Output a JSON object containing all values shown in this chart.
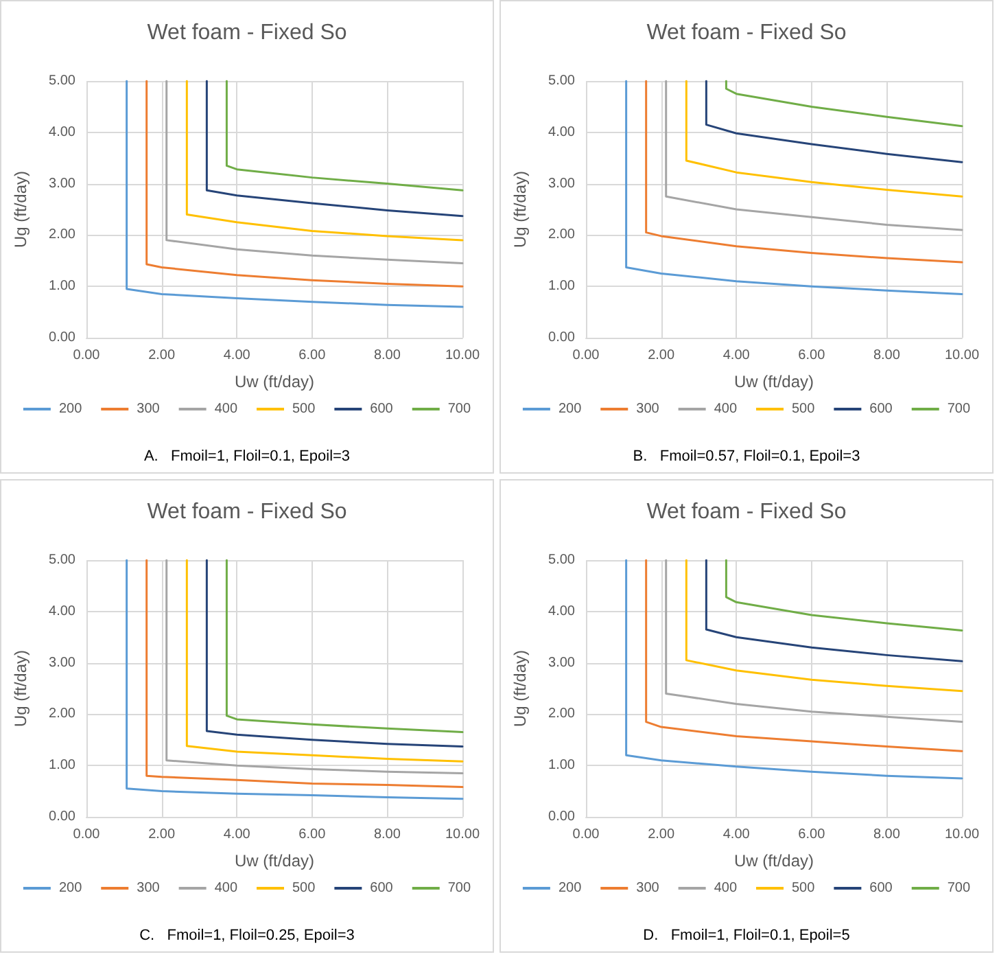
{
  "chart_data": [
    {
      "type": "line",
      "title": "Wet foam - Fixed So",
      "xlabel": "Uw (ft/day)",
      "ylabel": "Ug (ft/day)",
      "annotations": [
        "A.   Fmoil=1, Floil=0.1, Epoil=3"
      ],
      "xlim": [
        0,
        10
      ],
      "ylim": [
        0,
        5
      ],
      "xticks": [
        {
          "value": 0,
          "label": "0.00"
        },
        {
          "value": 2,
          "label": "2.00"
        },
        {
          "value": 4,
          "label": "4.00"
        },
        {
          "value": 6,
          "label": "6.00"
        },
        {
          "value": 8,
          "label": "8.00"
        },
        {
          "value": 10,
          "label": "10.00"
        }
      ],
      "yticks": [
        {
          "value": 0,
          "label": "0.00"
        },
        {
          "value": 1,
          "label": "1.00"
        },
        {
          "value": 2,
          "label": "2.00"
        },
        {
          "value": 3,
          "label": "3.00"
        },
        {
          "value": 4,
          "label": "4.00"
        },
        {
          "value": 5,
          "label": "5.00"
        }
      ],
      "grid": true,
      "legend": "bottom",
      "marker": "none",
      "line_style": "solid",
      "series": [
        {
          "name": "200",
          "color": "#5b9bd5",
          "x": [
            1.07,
            1.07,
            2,
            4,
            6,
            8,
            10
          ],
          "values": [
            5,
            0.95,
            0.85,
            0.77,
            0.7,
            0.64,
            0.6
          ]
        },
        {
          "name": "300",
          "color": "#ed7d31",
          "x": [
            1.6,
            1.6,
            2,
            4,
            6,
            8,
            10
          ],
          "values": [
            5,
            1.43,
            1.37,
            1.22,
            1.12,
            1.05,
            1.0
          ]
        },
        {
          "name": "400",
          "color": "#a5a5a5",
          "x": [
            2.13,
            2.13,
            4,
            6,
            8,
            10
          ],
          "values": [
            5,
            1.9,
            1.72,
            1.6,
            1.52,
            1.45
          ]
        },
        {
          "name": "500",
          "color": "#ffc000",
          "x": [
            2.67,
            2.67,
            4,
            6,
            8,
            10
          ],
          "values": [
            5,
            2.4,
            2.25,
            2.08,
            1.98,
            1.9
          ]
        },
        {
          "name": "600",
          "color": "#264478",
          "x": [
            3.2,
            3.2,
            4,
            6,
            8,
            10
          ],
          "values": [
            5,
            2.87,
            2.77,
            2.62,
            2.48,
            2.37
          ]
        },
        {
          "name": "700",
          "color": "#70ad47",
          "x": [
            3.73,
            3.73,
            4,
            6,
            8,
            10
          ],
          "values": [
            5,
            3.35,
            3.28,
            3.12,
            3.0,
            2.87
          ]
        }
      ]
    },
    {
      "type": "line",
      "title": "Wet foam - Fixed So",
      "xlabel": "Uw (ft/day)",
      "ylabel": "Ug (ft/day)",
      "annotations": [
        "B.   Fmoil=0.57, Floil=0.1, Epoil=3"
      ],
      "xlim": [
        0,
        10
      ],
      "ylim": [
        0,
        5
      ],
      "xticks": [
        {
          "value": 0,
          "label": "0.00"
        },
        {
          "value": 2,
          "label": "2.00"
        },
        {
          "value": 4,
          "label": "4.00"
        },
        {
          "value": 6,
          "label": "6.00"
        },
        {
          "value": 8,
          "label": "8.00"
        },
        {
          "value": 10,
          "label": "10.00"
        }
      ],
      "yticks": [
        {
          "value": 0,
          "label": "0.00"
        },
        {
          "value": 1,
          "label": "1.00"
        },
        {
          "value": 2,
          "label": "2.00"
        },
        {
          "value": 3,
          "label": "3.00"
        },
        {
          "value": 4,
          "label": "4.00"
        },
        {
          "value": 5,
          "label": "5.00"
        }
      ],
      "grid": true,
      "legend": "bottom",
      "marker": "none",
      "line_style": "solid",
      "series": [
        {
          "name": "200",
          "color": "#5b9bd5",
          "x": [
            1.07,
            1.07,
            2,
            4,
            6,
            8,
            10
          ],
          "values": [
            5,
            1.37,
            1.25,
            1.1,
            1.0,
            0.92,
            0.85
          ]
        },
        {
          "name": "300",
          "color": "#ed7d31",
          "x": [
            1.6,
            1.6,
            2,
            4,
            6,
            8,
            10
          ],
          "values": [
            5,
            2.05,
            1.98,
            1.78,
            1.65,
            1.55,
            1.47
          ]
        },
        {
          "name": "400",
          "color": "#a5a5a5",
          "x": [
            2.13,
            2.13,
            4,
            6,
            8,
            10
          ],
          "values": [
            5,
            2.75,
            2.5,
            2.35,
            2.2,
            2.1
          ]
        },
        {
          "name": "500",
          "color": "#ffc000",
          "x": [
            2.67,
            2.67,
            4,
            6,
            8,
            10
          ],
          "values": [
            5,
            3.45,
            3.22,
            3.03,
            2.88,
            2.75
          ]
        },
        {
          "name": "600",
          "color": "#264478",
          "x": [
            3.2,
            3.2,
            4,
            6,
            8,
            10
          ],
          "values": [
            5,
            4.15,
            3.98,
            3.77,
            3.58,
            3.42
          ]
        },
        {
          "name": "700",
          "color": "#70ad47",
          "x": [
            3.73,
            3.73,
            4,
            6,
            8,
            10
          ],
          "values": [
            5,
            4.85,
            4.75,
            4.5,
            4.3,
            4.12
          ]
        }
      ]
    },
    {
      "type": "line",
      "title": "Wet foam - Fixed So",
      "xlabel": "Uw (ft/day)",
      "ylabel": "Ug (ft/day)",
      "annotations": [
        "C.   Fmoil=1, Floil=0.25, Epoil=3"
      ],
      "xlim": [
        0,
        10
      ],
      "ylim": [
        0,
        5
      ],
      "xticks": [
        {
          "value": 0,
          "label": "0.00"
        },
        {
          "value": 2,
          "label": "2.00"
        },
        {
          "value": 4,
          "label": "4.00"
        },
        {
          "value": 6,
          "label": "6.00"
        },
        {
          "value": 8,
          "label": "8.00"
        },
        {
          "value": 10,
          "label": "10.00"
        }
      ],
      "yticks": [
        {
          "value": 0,
          "label": "0.00"
        },
        {
          "value": 1,
          "label": "1.00"
        },
        {
          "value": 2,
          "label": "2.00"
        },
        {
          "value": 3,
          "label": "3.00"
        },
        {
          "value": 4,
          "label": "4.00"
        },
        {
          "value": 5,
          "label": "5.00"
        }
      ],
      "grid": true,
      "legend": "bottom",
      "marker": "none",
      "line_style": "solid",
      "series": [
        {
          "name": "200",
          "color": "#5b9bd5",
          "x": [
            1.07,
            1.07,
            2,
            4,
            6,
            8,
            10
          ],
          "values": [
            5,
            0.55,
            0.5,
            0.45,
            0.42,
            0.38,
            0.35
          ]
        },
        {
          "name": "300",
          "color": "#ed7d31",
          "x": [
            1.6,
            1.6,
            2,
            4,
            6,
            8,
            10
          ],
          "values": [
            5,
            0.8,
            0.78,
            0.72,
            0.65,
            0.62,
            0.58
          ]
        },
        {
          "name": "400",
          "color": "#a5a5a5",
          "x": [
            2.13,
            2.13,
            4,
            6,
            8,
            10
          ],
          "values": [
            5,
            1.1,
            1.0,
            0.93,
            0.88,
            0.85
          ]
        },
        {
          "name": "500",
          "color": "#ffc000",
          "x": [
            2.67,
            2.67,
            4,
            6,
            8,
            10
          ],
          "values": [
            5,
            1.38,
            1.27,
            1.2,
            1.13,
            1.08
          ]
        },
        {
          "name": "600",
          "color": "#264478",
          "x": [
            3.2,
            3.2,
            4,
            6,
            8,
            10
          ],
          "values": [
            5,
            1.67,
            1.6,
            1.5,
            1.42,
            1.37
          ]
        },
        {
          "name": "700",
          "color": "#70ad47",
          "x": [
            3.73,
            3.73,
            4,
            6,
            8,
            10
          ],
          "values": [
            5,
            1.97,
            1.9,
            1.8,
            1.72,
            1.65
          ]
        }
      ]
    },
    {
      "type": "line",
      "title": "Wet foam - Fixed So",
      "xlabel": "Uw (ft/day)",
      "ylabel": "Ug (ft/day)",
      "annotations": [
        "D.   Fmoil=1, Floil=0.1, Epoil=5"
      ],
      "xlim": [
        0,
        10
      ],
      "ylim": [
        0,
        5
      ],
      "xticks": [
        {
          "value": 0,
          "label": "0.00"
        },
        {
          "value": 2,
          "label": "2.00"
        },
        {
          "value": 4,
          "label": "4.00"
        },
        {
          "value": 6,
          "label": "6.00"
        },
        {
          "value": 8,
          "label": "8.00"
        },
        {
          "value": 10,
          "label": "10.00"
        }
      ],
      "yticks": [
        {
          "value": 0,
          "label": "0.00"
        },
        {
          "value": 1,
          "label": "1.00"
        },
        {
          "value": 2,
          "label": "2.00"
        },
        {
          "value": 3,
          "label": "3.00"
        },
        {
          "value": 4,
          "label": "4.00"
        },
        {
          "value": 5,
          "label": "5.00"
        }
      ],
      "grid": true,
      "legend": "bottom",
      "marker": "none",
      "line_style": "solid",
      "series": [
        {
          "name": "200",
          "color": "#5b9bd5",
          "x": [
            1.07,
            1.07,
            2,
            4,
            6,
            8,
            10
          ],
          "values": [
            5,
            1.2,
            1.1,
            0.98,
            0.88,
            0.8,
            0.75
          ]
        },
        {
          "name": "300",
          "color": "#ed7d31",
          "x": [
            1.6,
            1.6,
            2,
            4,
            6,
            8,
            10
          ],
          "values": [
            5,
            1.85,
            1.75,
            1.57,
            1.47,
            1.37,
            1.28
          ]
        },
        {
          "name": "400",
          "color": "#a5a5a5",
          "x": [
            2.13,
            2.13,
            4,
            6,
            8,
            10
          ],
          "values": [
            5,
            2.4,
            2.2,
            2.05,
            1.95,
            1.85
          ]
        },
        {
          "name": "500",
          "color": "#ffc000",
          "x": [
            2.67,
            2.67,
            4,
            6,
            8,
            10
          ],
          "values": [
            5,
            3.05,
            2.85,
            2.67,
            2.55,
            2.45
          ]
        },
        {
          "name": "600",
          "color": "#264478",
          "x": [
            3.2,
            3.2,
            4,
            6,
            8,
            10
          ],
          "values": [
            5,
            3.65,
            3.5,
            3.3,
            3.15,
            3.03
          ]
        },
        {
          "name": "700",
          "color": "#70ad47",
          "x": [
            3.73,
            3.73,
            4,
            6,
            8,
            10
          ],
          "values": [
            5,
            4.28,
            4.18,
            3.93,
            3.77,
            3.63
          ]
        }
      ]
    }
  ]
}
